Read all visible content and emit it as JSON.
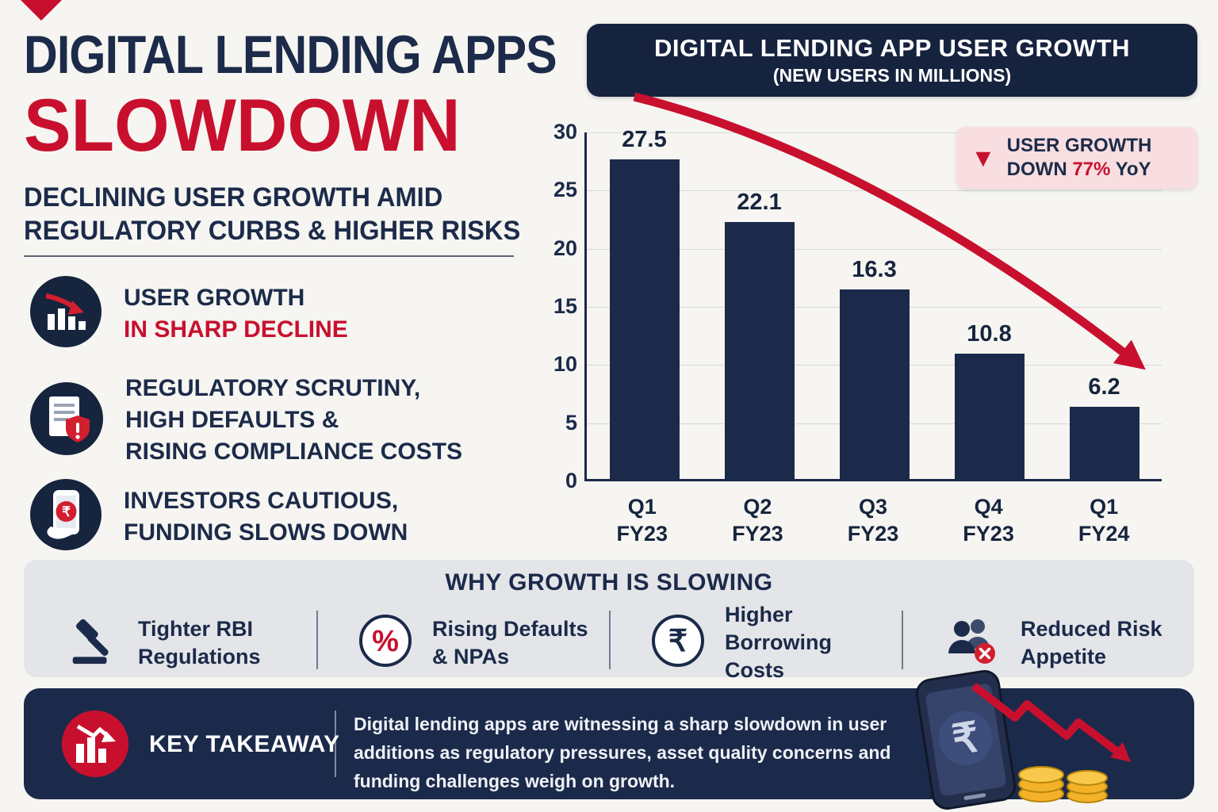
{
  "colors": {
    "navy": "#1b2a4a",
    "red": "#c8102e",
    "bg": "#f6f5f1",
    "band_gray": "#e4e5e8",
    "badge_bg": "#f8dee0",
    "bar": "#1b2a4a",
    "coin_gold": "#f3b229"
  },
  "header": {
    "title_line1": "DIGITAL LENDING APPS",
    "title_line2": "SLOWDOWN",
    "subtitle_line1": "DECLINING USER GROWTH AMID",
    "subtitle_line2": "REGULATORY CURBS & HIGHER RISKS"
  },
  "highlights": [
    {
      "icon": "declining-bar-chart-icon",
      "line1": "USER GROWTH",
      "line2": "IN SHARP DECLINE"
    },
    {
      "icon": "document-alert-icon",
      "line1": "REGULATORY SCRUTINY,",
      "line2": "HIGH DEFAULTS &",
      "line3": "RISING COMPLIANCE COSTS"
    },
    {
      "icon": "phone-rupee-icon",
      "line1": "INVESTORS CAUTIOUS,",
      "line2": "FUNDING SLOWS DOWN"
    }
  ],
  "chart_data": {
    "type": "bar",
    "title": "DIGITAL LENDING APP USER GROWTH",
    "subtitle": "(NEW USERS IN MILLIONS)",
    "categories": [
      "Q1 FY23",
      "Q2 FY23",
      "Q3 FY23",
      "Q4 FY23",
      "Q1 FY24"
    ],
    "values": [
      27.5,
      22.1,
      16.3,
      10.8,
      6.2
    ],
    "xlabel": "",
    "ylabel": "",
    "ylim": [
      0,
      30
    ],
    "yticks": [
      0,
      5,
      10,
      15,
      20,
      25,
      30
    ],
    "grid": true,
    "legend": "none",
    "bar_color": "#1b2a4a",
    "trend_overlay": "declining-red-arrow"
  },
  "badge": {
    "line1": "USER GROWTH",
    "line2_prefix": "DOWN ",
    "line2_value": "77%",
    "line2_suffix": " YoY"
  },
  "why_section": {
    "title": "WHY GROWTH IS SLOWING",
    "items": [
      {
        "icon": "gavel-icon",
        "line1": "Tighter RBI",
        "line2": "Regulations"
      },
      {
        "icon": "percent-badge-icon",
        "line1": "Rising Defaults",
        "line2": "& NPAs"
      },
      {
        "icon": "rupee-circle-icon",
        "line1": "Higher Borrowing",
        "line2": "Costs"
      },
      {
        "icon": "people-decline-icon",
        "line1": "Reduced Risk",
        "line2": "Appetite"
      }
    ]
  },
  "takeaway": {
    "label": "KEY TAKEAWAY",
    "text": "Digital lending apps are witnessing a sharp slowdown in user additions as regulatory pressures, asset quality concerns and funding challenges weigh on growth.",
    "icon": "declining-bars-icon",
    "illustration": "phone-rupee-coins-decline-arrow"
  },
  "icons": {
    "rupee": "₹",
    "percent": "%",
    "down_triangle": "▼",
    "exclamation": "!"
  }
}
